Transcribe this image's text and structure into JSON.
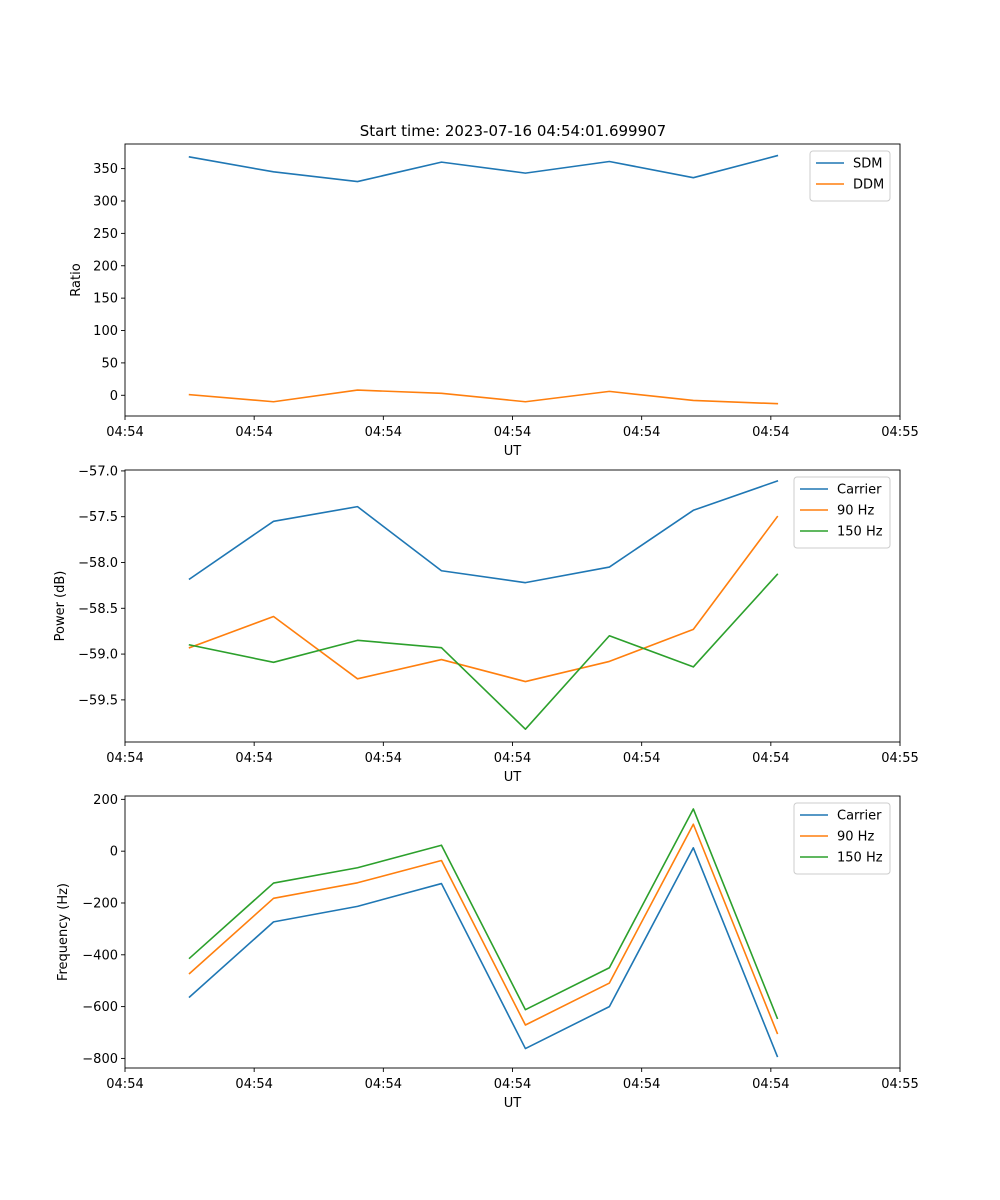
{
  "figure": {
    "title": "Start time: 2023-07-16 04:54:01.699907"
  },
  "colors": {
    "blue": "#1f77b4",
    "orange": "#ff7f0e",
    "green": "#2ca02c"
  },
  "chart_data": [
    {
      "type": "line",
      "title": "Start time: 2023-07-16 04:54:01.699907",
      "xlabel": "UT",
      "ylabel": "Ratio",
      "x": [
        0.5,
        1.15,
        1.8,
        2.45,
        3.1,
        3.75,
        4.4,
        5.05
      ],
      "xlim": [
        0,
        6
      ],
      "xticks": [
        0,
        1,
        2,
        3,
        4,
        5,
        6
      ],
      "xtick_labels": [
        "04:54",
        "04:54",
        "04:54",
        "04:54",
        "04:54",
        "04:54",
        "04:55"
      ],
      "ylim": [
        -32,
        388
      ],
      "yticks": [
        0,
        50,
        100,
        150,
        200,
        250,
        300,
        350
      ],
      "ytick_labels": [
        "0",
        "50",
        "100",
        "150",
        "200",
        "250",
        "300",
        "350"
      ],
      "legend": "top-right",
      "series": [
        {
          "name": "SDM",
          "color": "#1f77b4",
          "values": [
            368,
            345,
            330,
            360,
            343,
            361,
            336,
            370
          ]
        },
        {
          "name": "DDM",
          "color": "#ff7f0e",
          "values": [
            1,
            -10,
            8,
            3,
            -10,
            6,
            -8,
            -13
          ]
        }
      ]
    },
    {
      "type": "line",
      "title": "",
      "xlabel": "UT",
      "ylabel": "Power (dB)",
      "x": [
        0.5,
        1.15,
        1.8,
        2.45,
        3.1,
        3.75,
        4.4,
        5.05
      ],
      "xlim": [
        0,
        6
      ],
      "xticks": [
        0,
        1,
        2,
        3,
        4,
        5,
        6
      ],
      "xtick_labels": [
        "04:54",
        "04:54",
        "04:54",
        "04:54",
        "04:54",
        "04:54",
        "04:55"
      ],
      "ylim": [
        -59.96,
        -56.99
      ],
      "yticks": [
        -59.5,
        -59.0,
        -58.5,
        -58.0,
        -57.5,
        -57.0
      ],
      "ytick_labels": [
        "−59.5",
        "−59.0",
        "−58.5",
        "−58.0",
        "−57.5",
        "−57.0"
      ],
      "legend": "top-right",
      "series": [
        {
          "name": "Carrier",
          "color": "#1f77b4",
          "values": [
            -58.18,
            -57.55,
            -57.39,
            -58.09,
            -58.22,
            -58.05,
            -57.43,
            -57.11
          ]
        },
        {
          "name": "90 Hz",
          "color": "#ff7f0e",
          "values": [
            -58.93,
            -58.59,
            -59.27,
            -59.06,
            -59.3,
            -59.08,
            -58.73,
            -57.5
          ]
        },
        {
          "name": "150 Hz",
          "color": "#2ca02c",
          "values": [
            -58.9,
            -59.09,
            -58.85,
            -58.93,
            -59.82,
            -58.8,
            -59.14,
            -58.13
          ]
        }
      ]
    },
    {
      "type": "line",
      "title": "",
      "xlabel": "UT",
      "ylabel": "Frequency (Hz)",
      "x": [
        0.5,
        1.15,
        1.8,
        2.45,
        3.1,
        3.75,
        4.4,
        5.05
      ],
      "xlim": [
        0,
        6
      ],
      "xticks": [
        0,
        1,
        2,
        3,
        4,
        5,
        6
      ],
      "xtick_labels": [
        "04:54",
        "04:54",
        "04:54",
        "04:54",
        "04:54",
        "04:54",
        "04:55"
      ],
      "ylim": [
        -837,
        213
      ],
      "yticks": [
        -800,
        -600,
        -400,
        -200,
        0,
        200
      ],
      "ytick_labels": [
        "−800",
        "−600",
        "−400",
        "−200",
        "0",
        "200"
      ],
      "legend": "top-right",
      "series": [
        {
          "name": "Carrier",
          "color": "#1f77b4",
          "values": [
            -563,
            -273,
            -213,
            -125,
            -762,
            -600,
            13,
            -792
          ]
        },
        {
          "name": "90 Hz",
          "color": "#ff7f0e",
          "values": [
            -472,
            -182,
            -122,
            -36,
            -671,
            -509,
            104,
            -703
          ]
        },
        {
          "name": "150 Hz",
          "color": "#2ca02c",
          "values": [
            -413,
            -123,
            -64,
            23,
            -612,
            -450,
            163,
            -645
          ]
        }
      ]
    }
  ]
}
